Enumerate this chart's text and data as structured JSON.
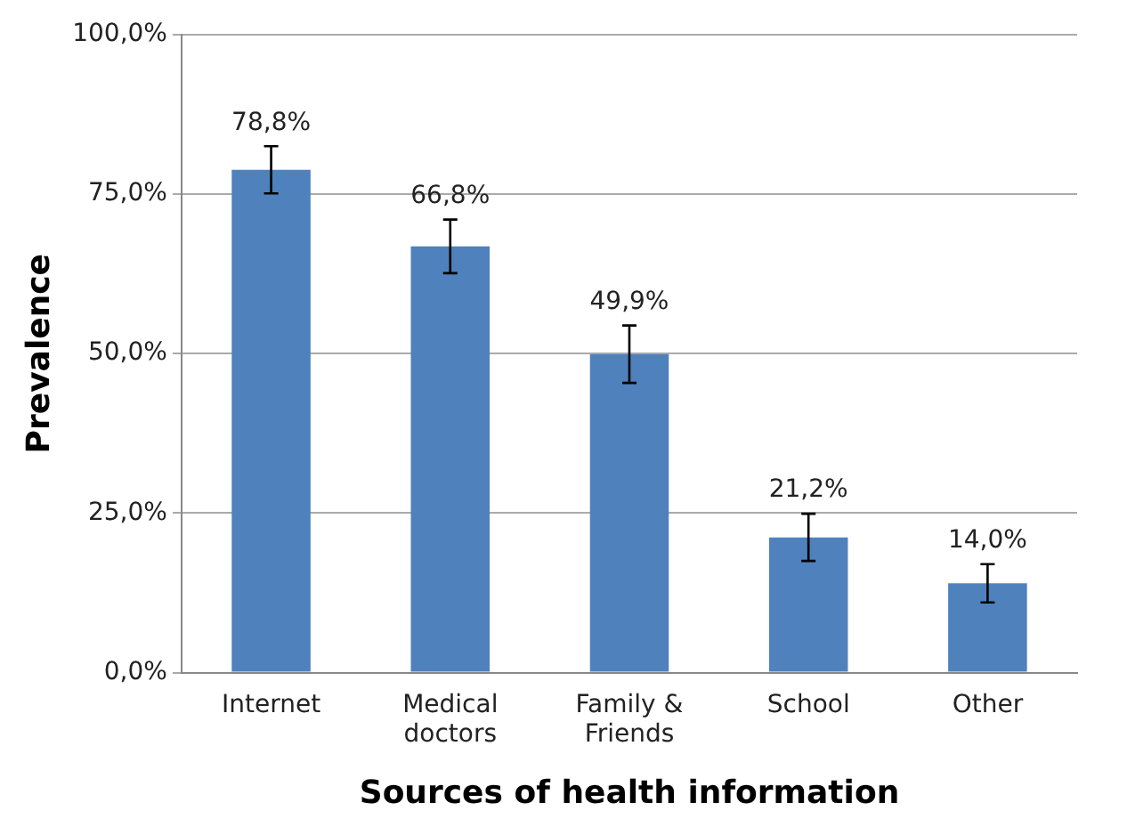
{
  "chart_data": {
    "type": "bar",
    "xlabel": "Sources of health information",
    "ylabel": "Prevalence",
    "categories": [
      "Internet",
      "Medical doctors",
      "Family & Friends",
      "School",
      "Other"
    ],
    "values": [
      78.8,
      66.8,
      49.9,
      21.2,
      14.0
    ],
    "value_labels": [
      "78,8%",
      "66,8%",
      "49,9%",
      "21,2%",
      "14,0%"
    ],
    "errors": [
      3.7,
      4.2,
      4.5,
      3.7,
      3.0
    ],
    "color": "#4f81bd",
    "ylim": [
      0,
      100
    ],
    "yticks": [
      {
        "value": 0,
        "label": "0,0%"
      },
      {
        "value": 25,
        "label": "25,0%"
      },
      {
        "value": 50,
        "label": "50,0%"
      },
      {
        "value": 75,
        "label": "75,0%"
      },
      {
        "value": 100,
        "label": "100,0%"
      }
    ],
    "grid": "y",
    "legend": false
  }
}
